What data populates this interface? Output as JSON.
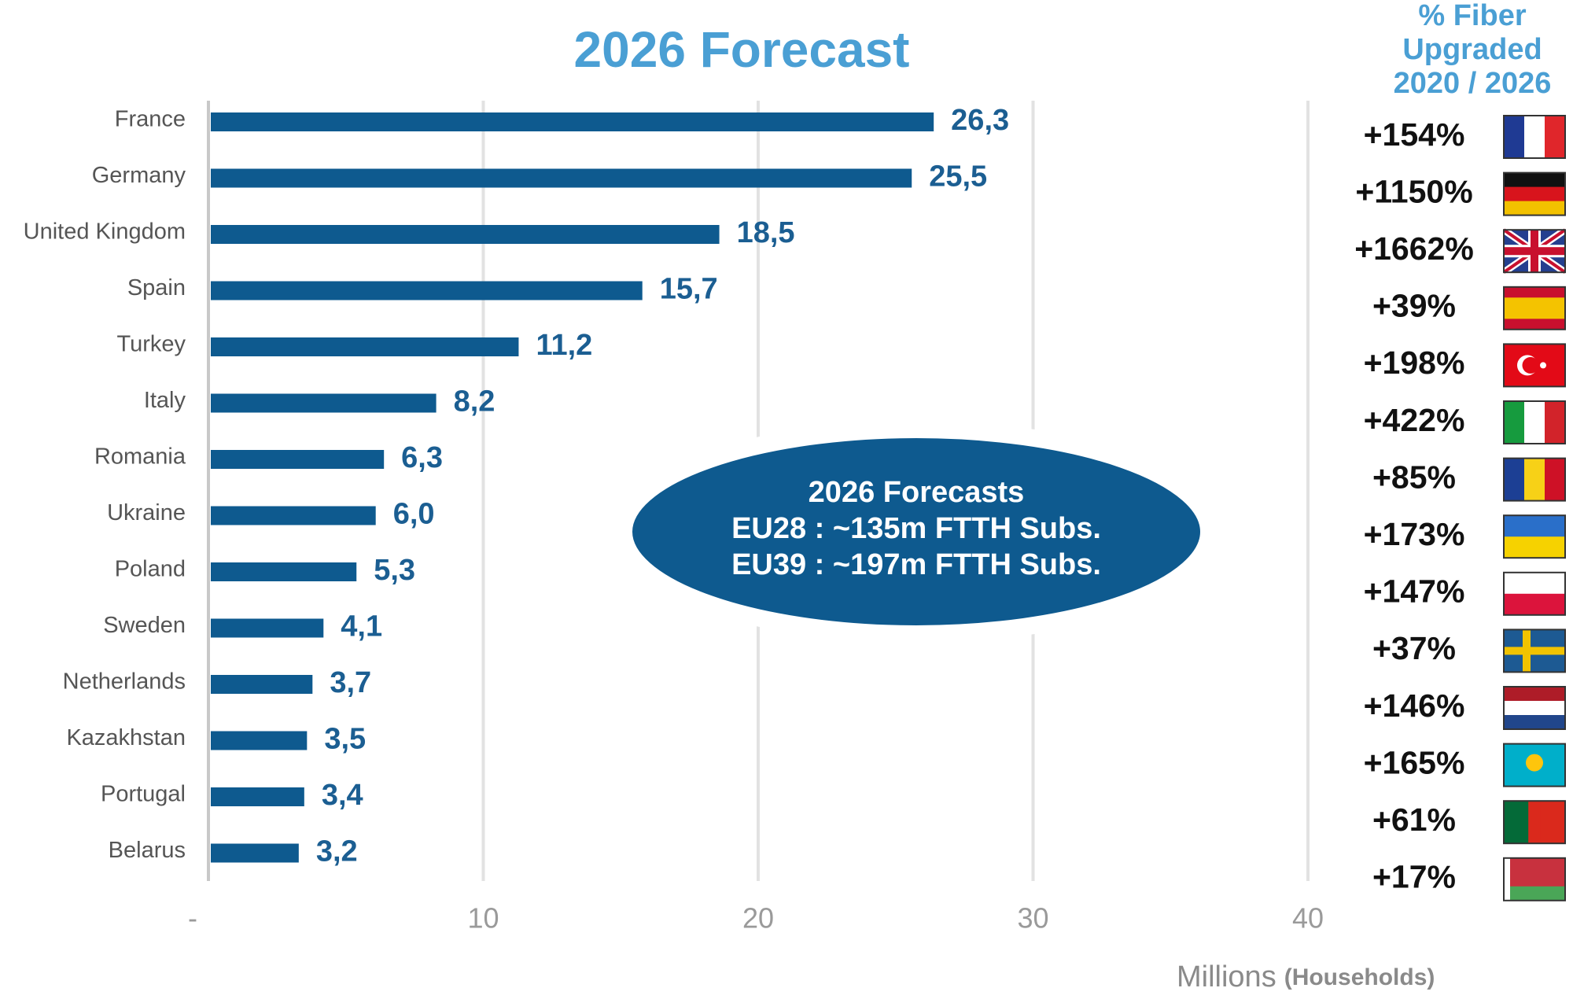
{
  "chart_data": {
    "type": "bar",
    "orientation": "horizontal",
    "title": "2026 Forecast",
    "categories": [
      "France",
      "Germany",
      "United Kingdom",
      "Spain",
      "Turkey",
      "Italy",
      "Romania",
      "Ukraine",
      "Poland",
      "Sweden",
      "Netherlands",
      "Kazakhstan",
      "Portugal",
      "Belarus"
    ],
    "values": [
      26.3,
      25.5,
      18.5,
      15.7,
      11.2,
      8.2,
      6.3,
      6.0,
      5.3,
      4.1,
      3.7,
      3.5,
      3.4,
      3.2
    ],
    "value_labels": [
      "26,3",
      "25,5",
      "18,5",
      "15,7",
      "11,2",
      "8,2",
      "6,3",
      "6,0",
      "5,3",
      "4,1",
      "3,7",
      "3,5",
      "3,4",
      "3,2"
    ],
    "color": "#0e5a8f",
    "xlim": [
      0,
      40
    ],
    "xticks": [
      {
        "value": 0,
        "label": "-"
      },
      10,
      20,
      30,
      40
    ],
    "grid": true,
    "x_label": [
      "Millions",
      "(Households)"
    ],
    "annotation": [
      "2026 Forecasts",
      "EU28 : ~135m FTTH Subs.",
      "EU39 : ~197m FTTH Subs."
    ],
    "fiber_upgrade": {
      "title": [
        "% Fiber",
        "Upgraded",
        "2020 / 2026"
      ],
      "values": [
        154,
        1150,
        1662,
        39,
        198,
        422,
        85,
        173,
        147,
        37,
        146,
        165,
        61,
        17
      ],
      "value_labels": [
        "+154%",
        "+1150%",
        "+1662%",
        "+39%",
        "+198%",
        "+422%",
        "+85%",
        "+173%",
        "+147%",
        "+37%",
        "+146%",
        "+165%",
        "+61%",
        "+17%"
      ]
    }
  }
}
